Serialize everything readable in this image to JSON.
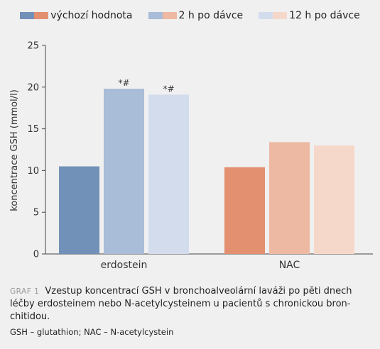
{
  "chart_data": {
    "type": "bar",
    "ylabel": "koncentrace GSH (mmol/l)",
    "ylim": [
      0,
      25
    ],
    "yticks": [
      0,
      5,
      10,
      15,
      20,
      25
    ],
    "categories": [
      "erdostein",
      "NAC"
    ],
    "series": [
      {
        "name": "výchozí hodnota",
        "values": [
          10.5,
          10.4
        ],
        "annotations": [
          "",
          ""
        ]
      },
      {
        "name": "2 h po dávce",
        "values": [
          19.8,
          13.4
        ],
        "annotations": [
          "*#",
          ""
        ]
      },
      {
        "name": "12 h po dávce",
        "values": [
          19.1,
          13.0
        ],
        "annotations": [
          "*#",
          ""
        ]
      }
    ],
    "colors": {
      "erdostein": [
        "#7291b8",
        "#a9bcd8",
        "#d3dcec"
      ],
      "NAC": [
        "#e39070",
        "#edb9a2",
        "#f6d8ca"
      ]
    },
    "legend_position": "top-center",
    "grid": false
  },
  "caption": {
    "tag": "GRAF 1",
    "text": "Vzestup koncentrací GSH v bronchoalveolární laváži po pěti dnech léčby erdosteinem nebo N-acetylcysteinem u pacientů s chronickou bron-chitidou."
  },
  "abbreviations": "GSH – glutathion; NAC – N-acetylcystein"
}
